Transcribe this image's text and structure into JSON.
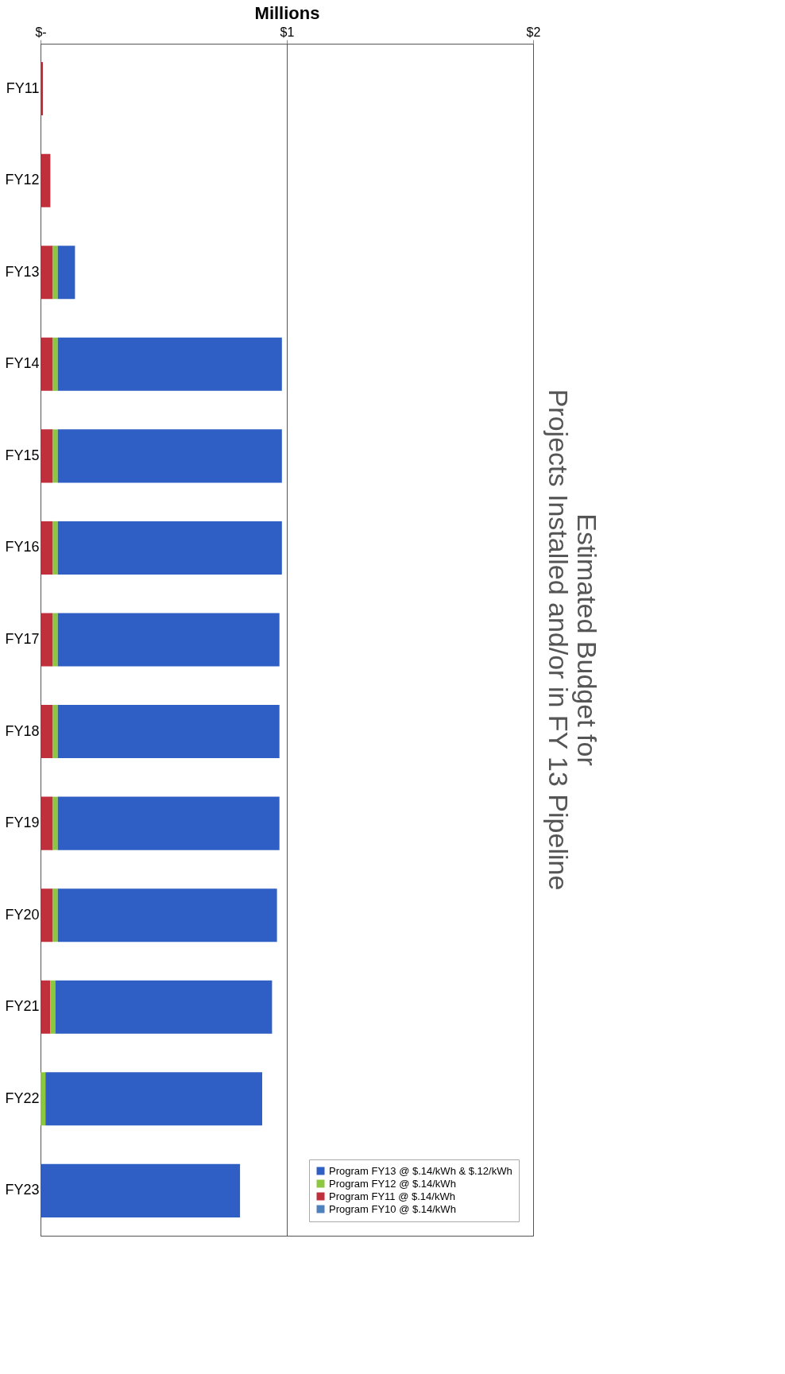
{
  "chart_data": {
    "type": "bar",
    "title": "Estimated Budget for\nProjects Installed and/or in FY 13 Pipeline",
    "xlabel": "Millions",
    "orientation": "horizontal",
    "stacked": true,
    "categories": [
      "FY11",
      "FY12",
      "FY13",
      "FY14",
      "FY15",
      "FY16",
      "FY17",
      "FY18",
      "FY19",
      "FY20",
      "FY21",
      "FY22",
      "FY23"
    ],
    "series": [
      {
        "name": "Program FY10 @ $.14/kWh",
        "color": "#4f81bd",
        "values": [
          null,
          null,
          null,
          null,
          null,
          null,
          null,
          null,
          null,
          null,
          null,
          null,
          null
        ]
      },
      {
        "name": "Program FY11 @ $.14/kWh",
        "color": "#c0303c",
        "values": [
          0.01,
          0.04,
          0.05,
          0.05,
          0.05,
          0.05,
          0.05,
          0.05,
          0.05,
          0.05,
          0.04,
          null,
          null
        ]
      },
      {
        "name": "Program FY12 @ $.14/kWh",
        "color": "#8dc63f",
        "values": [
          null,
          null,
          0.02,
          0.02,
          0.02,
          0.02,
          0.02,
          0.02,
          0.02,
          0.02,
          0.02,
          0.02,
          null
        ]
      },
      {
        "name": "Program FY13 @ $.14/kWh & $.12/kWh",
        "color": "#2f5fc4",
        "values": [
          null,
          null,
          0.07,
          0.91,
          0.91,
          0.91,
          0.9,
          0.9,
          0.9,
          0.89,
          0.88,
          0.88,
          0.81
        ]
      }
    ],
    "xlim": [
      0,
      2
    ],
    "xticks": [
      {
        "value": 0,
        "label": "$-"
      },
      {
        "value": 1,
        "label": "$1"
      },
      {
        "value": 2,
        "label": "$2"
      }
    ],
    "grid": "x",
    "legend": "bottom right"
  }
}
